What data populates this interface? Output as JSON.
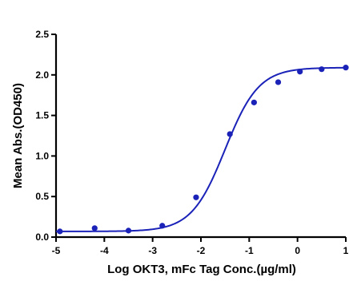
{
  "chart_data": {
    "type": "scatter",
    "title": "",
    "xlabel": "Log OKT3, mFc Tag Conc.(µg/ml)",
    "ylabel": "Mean Abs.(OD450)",
    "xlim": [
      -5,
      1
    ],
    "ylim": [
      0,
      2.5
    ],
    "xticks": [
      -5,
      -4,
      -3,
      -2,
      -1,
      0,
      1
    ],
    "yticks": [
      0.0,
      0.5,
      1.0,
      1.5,
      2.0,
      2.5
    ],
    "xtick_labels": [
      "-5",
      "-4",
      "-3",
      "-2",
      "-1",
      "0",
      "1"
    ],
    "ytick_labels": [
      "0.0",
      "0.5",
      "1.0",
      "1.5",
      "2.0",
      "2.5"
    ],
    "grid": false,
    "color": "#1a22b8",
    "series": [
      {
        "points": {
          "x": [
            -4.92,
            -4.2,
            -3.5,
            -2.8,
            -2.1,
            -1.4,
            -0.9,
            -0.4,
            0.05,
            0.5,
            1.0
          ],
          "y": [
            0.07,
            0.11,
            0.08,
            0.14,
            0.49,
            1.27,
            1.66,
            1.91,
            2.04,
            2.07,
            2.09
          ]
        },
        "fit": {
          "model": "4PL",
          "bottom": 0.07,
          "top": 2.09,
          "log_ec50": -1.5,
          "hill": 1.25
        }
      }
    ]
  }
}
